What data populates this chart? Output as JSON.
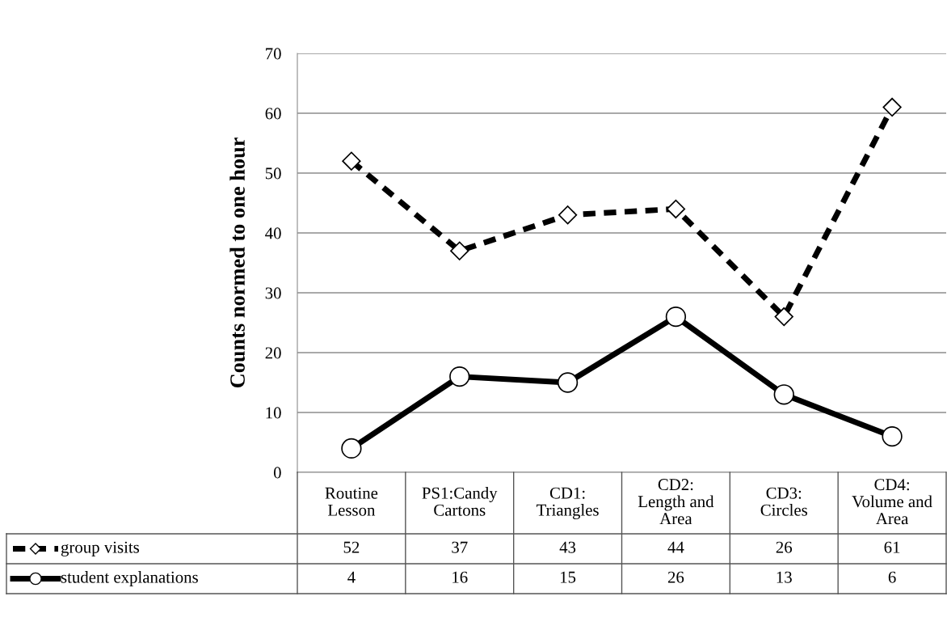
{
  "chart_data": {
    "type": "line",
    "ylabel": "Counts normed to one hour",
    "categories": [
      "Routine Lesson",
      "PS1:Candy Cartons",
      "CD1: Triangles",
      "CD2: Length and Area",
      "CD3: Circles",
      "CD4: Volume and Area"
    ],
    "series": [
      {
        "name": "group visits",
        "color": "#000000",
        "values": [
          52,
          37,
          43,
          44,
          26,
          61
        ],
        "marker": "diamond",
        "line_style": "dashed"
      },
      {
        "name": "student explanations",
        "color": "#000000",
        "values": [
          4,
          16,
          15,
          26,
          13,
          6
        ],
        "marker": "circle",
        "line_style": "solid"
      }
    ],
    "ylim": [
      0,
      70
    ],
    "yticks": [
      0,
      10,
      20,
      30,
      40,
      50,
      60,
      70
    ],
    "grid": "y",
    "legend": "bottom",
    "data_labels": true
  }
}
